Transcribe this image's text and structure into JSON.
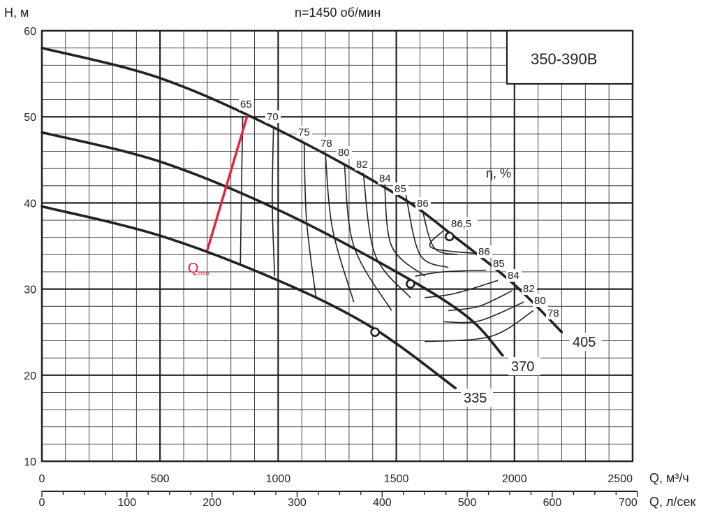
{
  "chart_data": {
    "type": "line",
    "title": "n=1450 об/мин",
    "model": "350-390B",
    "xlabel": "Q, м³/ч",
    "xlabel2": "Q, л/сек",
    "ylabel": "H, м",
    "eff_label": "η, %",
    "xlim": [
      0,
      2500
    ],
    "ylim": [
      10,
      60
    ],
    "x_ticks": [
      0,
      500,
      1000,
      1500,
      2000,
      2500
    ],
    "x2_ticks": [
      0,
      100,
      200,
      300,
      400,
      500,
      600,
      700
    ],
    "y_ticks": [
      10,
      20,
      30,
      40,
      50,
      60
    ],
    "grid": true,
    "series": [
      {
        "name": "405",
        "x": [
          0,
          500,
          1000,
          1500,
          1750,
          2000,
          2200
        ],
        "y": [
          58,
          54.5,
          48.5,
          41,
          36,
          30.5,
          25
        ]
      },
      {
        "name": "370",
        "x": [
          0,
          500,
          1000,
          1500,
          1800,
          1950
        ],
        "y": [
          48.2,
          44.8,
          39.2,
          32,
          26.8,
          22.3
        ]
      },
      {
        "name": "335",
        "x": [
          0,
          500,
          1000,
          1400,
          1750
        ],
        "y": [
          39.6,
          36.2,
          31,
          25.5,
          18.5
        ]
      }
    ],
    "best_efficiency_points": [
      {
        "series": "405",
        "x": 1725,
        "y": 36.1
      },
      {
        "series": "370",
        "x": 1560,
        "y": 30.6
      },
      {
        "series": "335",
        "x": 1410,
        "y": 25
      }
    ],
    "q_min": {
      "label": "Q",
      "sub": "min",
      "x1": 700,
      "y1": 34.5,
      "x2": 870,
      "y2": 50.2
    },
    "efficiency_labels_top": [
      "65",
      "70",
      "75",
      "78",
      "80",
      "82",
      "84",
      "85",
      "86",
      "86,5"
    ],
    "efficiency_labels_right": [
      "86",
      "85",
      "84",
      "82",
      "80",
      "78"
    ]
  }
}
